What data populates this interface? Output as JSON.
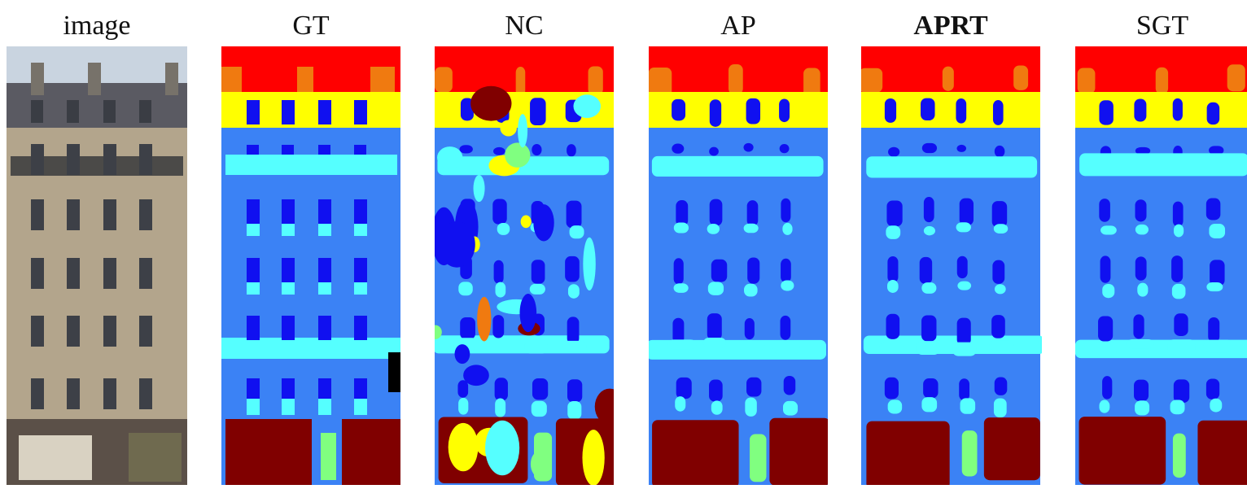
{
  "panels": [
    {
      "title": "image"
    },
    {
      "title": "GT"
    },
    {
      "title": "NC"
    },
    {
      "title": "AP"
    },
    {
      "title": "APRT"
    },
    {
      "title": "SGT"
    }
  ]
}
